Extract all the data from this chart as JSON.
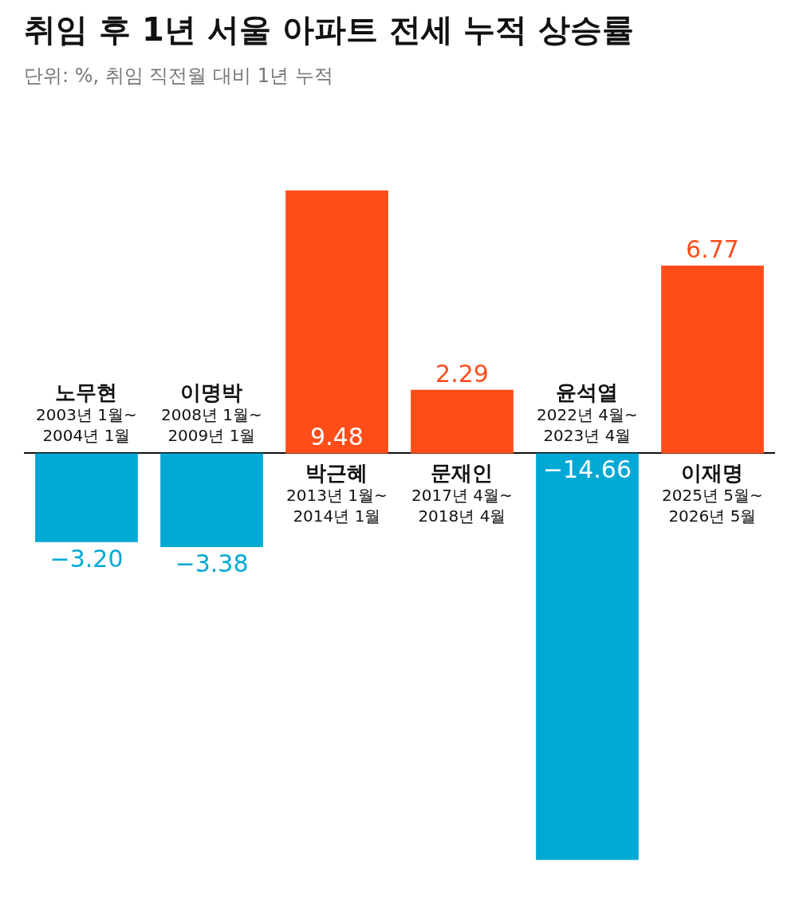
{
  "chart_data": {
    "type": "bar",
    "title": "취임 후 1년 서울 아파트 전세 누적 상승률",
    "subtitle": "단위: %, 취임 직전월 대비 1년 누적",
    "categories": [
      "노무현\n2003년 1월~\n2004년 1월",
      "이명박\n2008년 1월~\n2009년 1월",
      "박근혜\n2013년 1월~\n2014년 1월",
      "문재인\n2017년 4월~\n2018년 4월",
      "윤석열\n2022년 4월~\n2023년 4월",
      "이재명\n2025년 5월~\n2026년 5월"
    ],
    "values": [
      -3.2,
      -3.38,
      9.48,
      2.29,
      -14.66,
      6.77
    ],
    "value_labels": [
      "−3.20",
      "−3.38",
      "9.48",
      "2.29",
      "−14.66",
      "6.77"
    ],
    "colors": [
      "#00a9d4",
      "#00a9d4",
      "#ff4d1a",
      "#ff4d1a",
      "#00a9d4",
      "#ff4d1a"
    ],
    "tick_labels": false,
    "legend": false
  }
}
